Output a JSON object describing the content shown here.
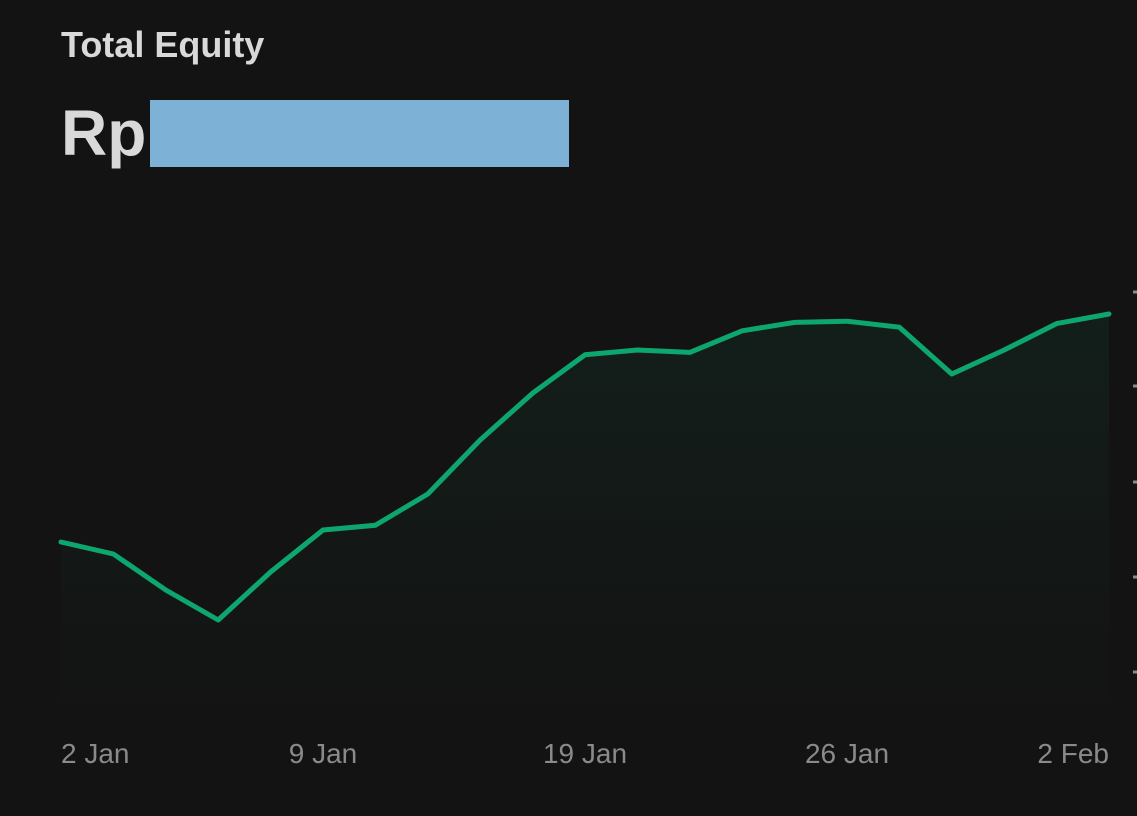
{
  "header": {
    "title": "Total Equity",
    "currency_prefix": "Rp",
    "amount_redacted": true
  },
  "colors": {
    "background": "#131313",
    "line": "#0ea66f",
    "text": "#d9d9d9",
    "tick": "#8a8a8a",
    "redaction": "#7db2d6"
  },
  "chart_data": {
    "type": "area",
    "title": "Total Equity",
    "x_tick_labels": [
      "2 Jan",
      "9 Jan",
      "19 Jan",
      "26 Jan",
      "2 Feb"
    ],
    "x_tick_index": [
      0,
      5,
      10,
      15,
      20
    ],
    "y_axis_tick_labels_visible": false,
    "grid": false,
    "series": [
      {
        "values": [
          14,
          13,
          10,
          7.5,
          11.5,
          15,
          15.4,
          18,
          22.5,
          26.4,
          29.6,
          30,
          29.8,
          31.6,
          32.3,
          32.4,
          31.9,
          28,
          30,
          32.2,
          33
        ]
      }
    ],
    "ylim": [
      0,
      40
    ]
  }
}
